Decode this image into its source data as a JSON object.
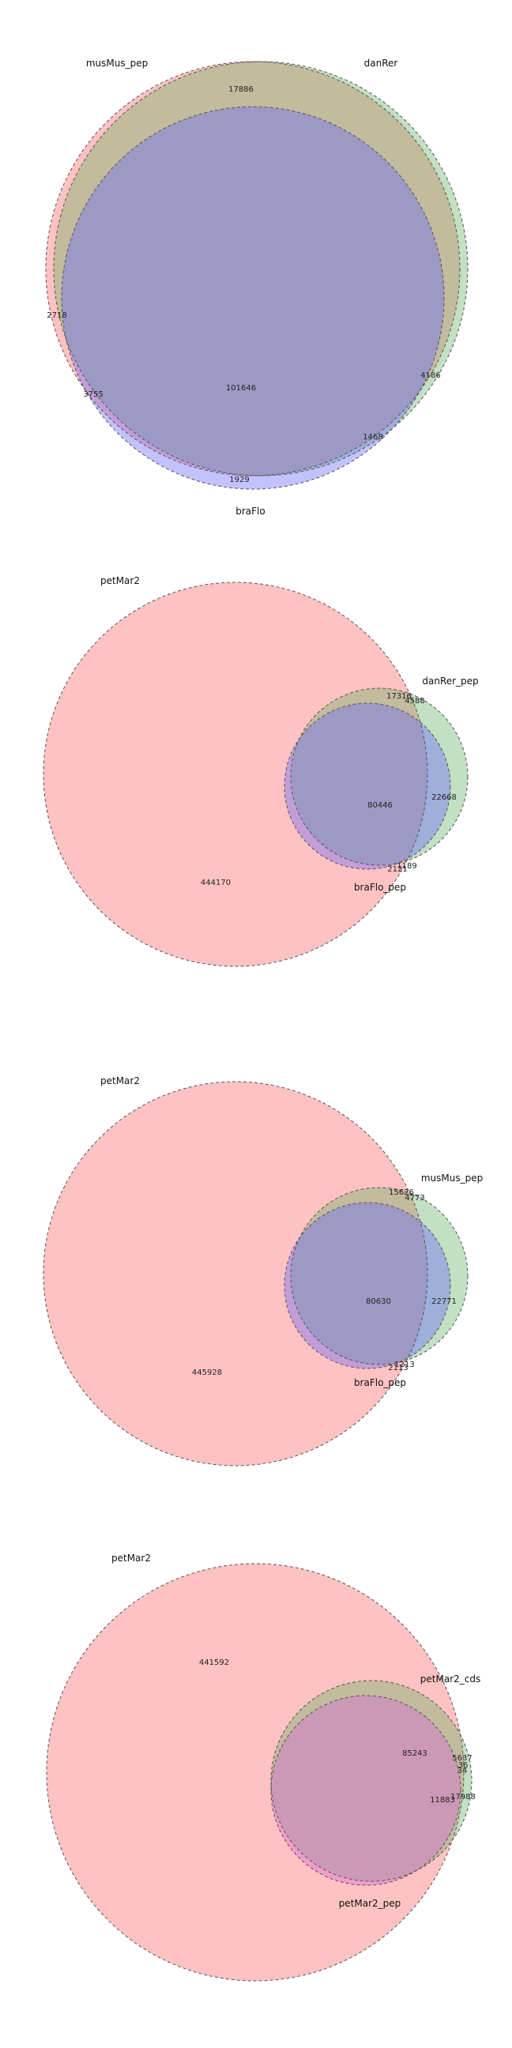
{
  "chart_data": [
    {
      "type": "venn3",
      "sets": [
        {
          "name": "musMus_pep",
          "color": "#ff6666"
        },
        {
          "name": "danRer",
          "color": "#66b266"
        },
        {
          "name": "braFlo",
          "color": "#6666ff"
        }
      ],
      "regions": [
        {
          "sets": [
            "musMus_pep"
          ],
          "value": 2718
        },
        {
          "sets": [
            "danRer"
          ],
          "value": 4186
        },
        {
          "sets": [
            "braFlo"
          ],
          "value": 1929
        },
        {
          "sets": [
            "musMus_pep",
            "danRer"
          ],
          "value": 17886
        },
        {
          "sets": [
            "musMus_pep",
            "braFlo"
          ],
          "value": 3755
        },
        {
          "sets": [
            "danRer",
            "braFlo"
          ],
          "value": 1468
        },
        {
          "sets": [
            "musMus_pep",
            "danRer",
            "braFlo"
          ],
          "value": 101646
        }
      ]
    },
    {
      "type": "venn3",
      "sets": [
        {
          "name": "petMar2",
          "color": "#ff6666"
        },
        {
          "name": "danRer_pep",
          "color": "#66b266"
        },
        {
          "name": "braFlo_pep",
          "color": "#6666ff"
        }
      ],
      "regions": [
        {
          "sets": [
            "petMar2"
          ],
          "value": 444170
        },
        {
          "sets": [
            "danRer_pep"
          ],
          "value": 4588
        },
        {
          "sets": [
            "braFlo_pep"
          ],
          "value": 1189
        },
        {
          "sets": [
            "petMar2",
            "danRer_pep"
          ],
          "value": 17316
        },
        {
          "sets": [
            "petMar2",
            "braFlo_pep"
          ],
          "value": 2121
        },
        {
          "sets": [
            "danRer_pep",
            "braFlo_pep"
          ],
          "value": 22668
        },
        {
          "sets": [
            "petMar2",
            "danRer_pep",
            "braFlo_pep"
          ],
          "value": 80446
        }
      ]
    },
    {
      "type": "venn3",
      "sets": [
        {
          "name": "petMar2",
          "color": "#ff6666"
        },
        {
          "name": "musMus_pep",
          "color": "#66b266"
        },
        {
          "name": "braFlo_pep",
          "color": "#6666ff"
        }
      ],
      "regions": [
        {
          "sets": [
            "petMar2"
          ],
          "value": 445928
        },
        {
          "sets": [
            "musMus_pep"
          ],
          "value": 4773
        },
        {
          "sets": [
            "braFlo_pep"
          ],
          "value": 1213
        },
        {
          "sets": [
            "petMar2",
            "musMus_pep"
          ],
          "value": 15626
        },
        {
          "sets": [
            "petMar2",
            "braFlo_pep"
          ],
          "value": 2113
        },
        {
          "sets": [
            "musMus_pep",
            "braFlo_pep"
          ],
          "value": 22771
        },
        {
          "sets": [
            "petMar2",
            "musMus_pep",
            "braFlo_pep"
          ],
          "value": 80630
        }
      ]
    },
    {
      "type": "venn3",
      "sets": [
        {
          "name": "petMar2",
          "color": "#ff6666"
        },
        {
          "name": "petMar2_cds",
          "color": "#66b266"
        },
        {
          "name": "petMar2_pep",
          "color": "#d966d9"
        }
      ],
      "regions": [
        {
          "sets": [
            "petMar2"
          ],
          "value": 441592
        },
        {
          "sets": [
            "petMar2_cds"
          ],
          "value": 34
        },
        {
          "sets": [
            "petMar2_pep"
          ],
          "value": 17988
        },
        {
          "sets": [
            "petMar2",
            "petMar2_cds"
          ],
          "value": 5637
        },
        {
          "sets": [
            "petMar2",
            "petMar2_pep"
          ],
          "value": 11883
        },
        {
          "sets": [
            "petMar2_cds",
            "petMar2_pep"
          ],
          "value": 36
        },
        {
          "sets": [
            "petMar2",
            "petMar2_cds",
            "petMar2_pep"
          ],
          "value": 85243
        }
      ]
    }
  ]
}
